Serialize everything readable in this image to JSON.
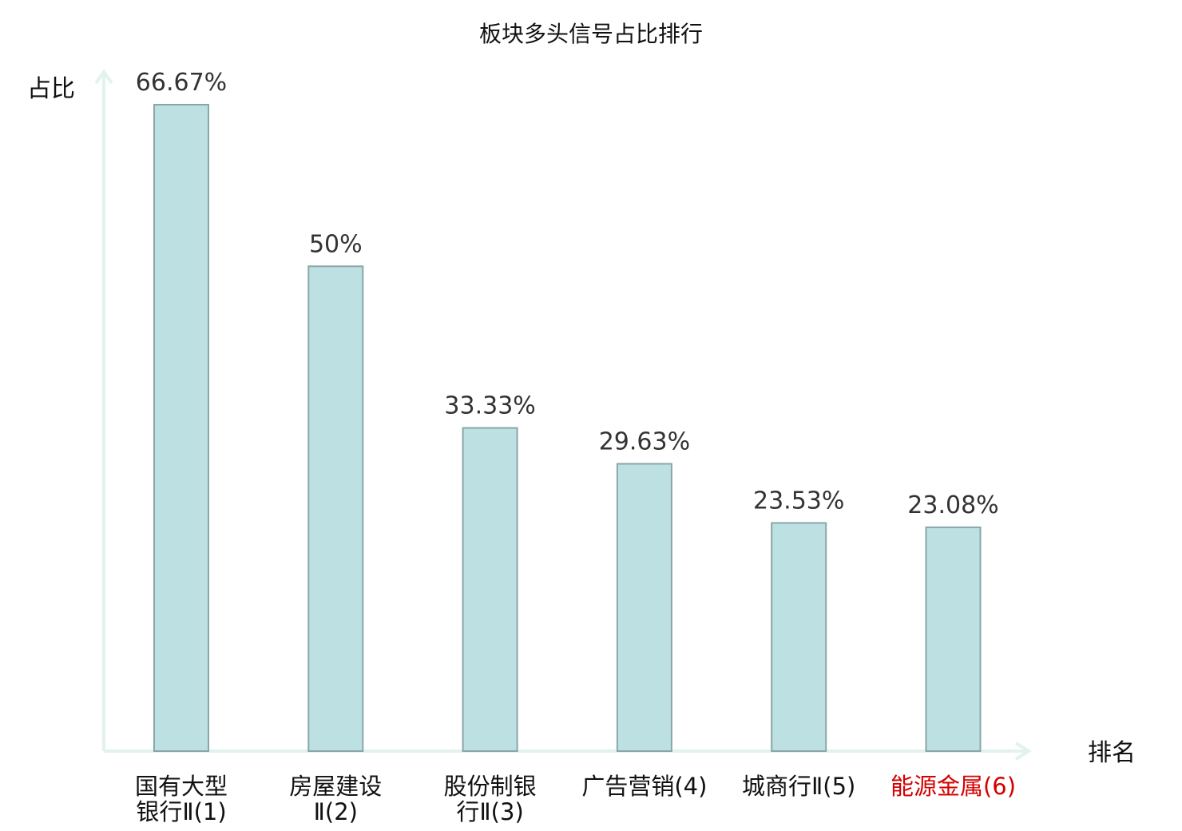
{
  "chart_data": {
    "type": "bar",
    "title": "板块多头信号占比排行",
    "ylabel": "占比",
    "xlabel": "排名",
    "ylim": [
      0,
      70
    ],
    "grid": false,
    "categories": [
      [
        "国有大型",
        "银行Ⅱ(1)"
      ],
      [
        "房屋建设",
        "Ⅱ(2)"
      ],
      [
        "股份制银",
        "行Ⅱ(3)"
      ],
      [
        "广告营销(4)"
      ],
      [
        "城商行Ⅱ(5)"
      ],
      [
        "能源金属(6)"
      ]
    ],
    "values": [
      66.67,
      50,
      33.33,
      29.63,
      23.53,
      23.08
    ],
    "value_labels": [
      "66.67%",
      "50%",
      "33.33%",
      "29.63%",
      "23.53%",
      "23.08%"
    ],
    "highlight_index": 5,
    "colors": {
      "bar_fill": "#bde0e2",
      "bar_stroke": "#8aa6a8",
      "axis": "#e2f2ef",
      "highlight_label": "#d40000"
    }
  }
}
